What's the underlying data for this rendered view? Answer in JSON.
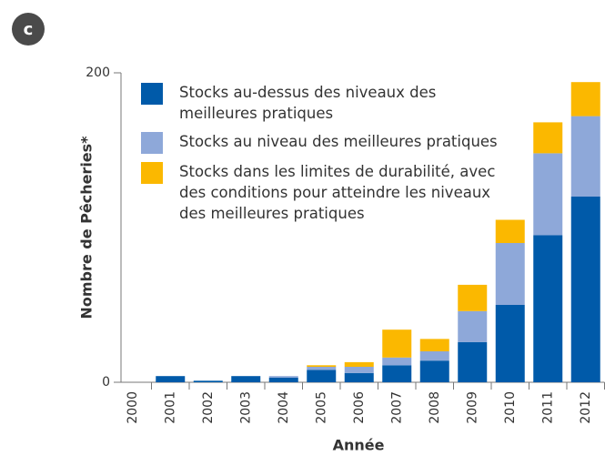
{
  "chart_data": {
    "type": "stacked_bar",
    "panel_label": "c",
    "ylabel": "Nombre de Pêcheries*",
    "xlabel": "Année",
    "categories": [
      "2000",
      "2001",
      "2002",
      "2003",
      "2004",
      "2005",
      "2006",
      "2007",
      "2008",
      "2009",
      "2010",
      "2011",
      "2012"
    ],
    "series": [
      {
        "name": "Stocks au-dessus des niveaux des meilleures pratiques",
        "color": "#005aa9",
        "values": [
          0,
          4,
          1,
          4,
          3,
          8,
          6,
          11,
          14,
          26,
          50,
          95,
          120
        ]
      },
      {
        "name": "Stocks au niveau des meilleures pratiques",
        "color": "#8ea8d9",
        "values": [
          0,
          0,
          0,
          0,
          1,
          2,
          4,
          5,
          6,
          20,
          40,
          53,
          52
        ]
      },
      {
        "name": "Stocks dans les limites de durabilité, avec des conditions pour atteindre les niveaux des meilleures pratiques",
        "color": "#fbb800",
        "values": [
          0,
          0,
          0,
          0,
          0,
          1,
          3,
          18,
          8,
          17,
          15,
          20,
          22
        ]
      }
    ],
    "ylim": [
      0,
      200
    ],
    "yticks": [
      0,
      200
    ],
    "legend": "upper left"
  }
}
